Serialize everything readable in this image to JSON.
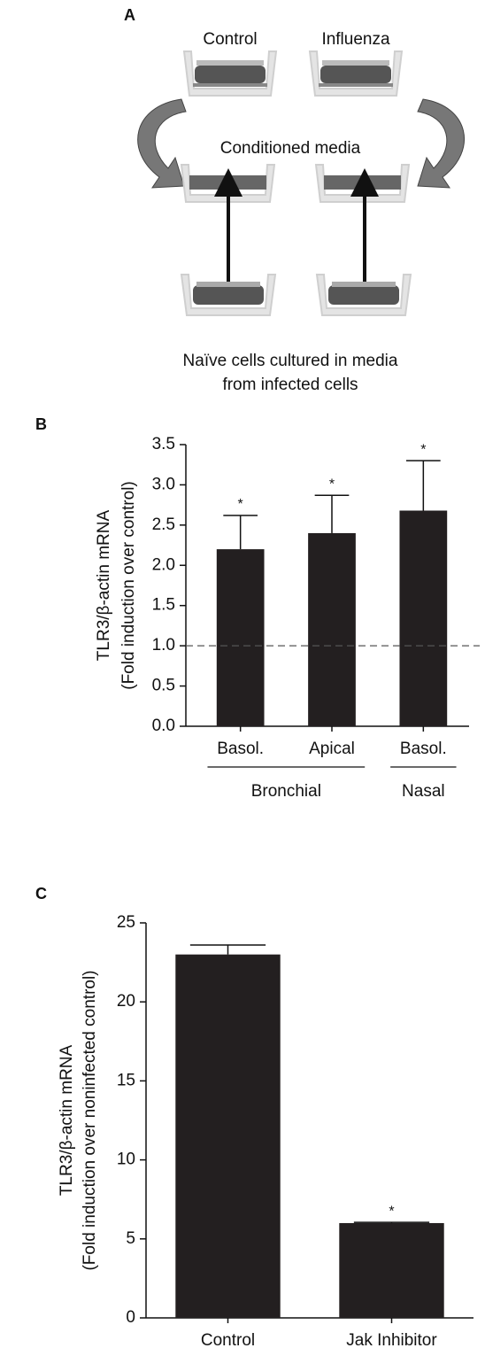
{
  "figure_a": {
    "label": "A",
    "wells": [
      "Control",
      "Influenza"
    ],
    "middle": "Conditioned media",
    "caption": [
      "Naïve cells cultured in media",
      "from infected cells"
    ]
  },
  "chart_data": [
    {
      "type": "bar",
      "label": "B",
      "categories": [
        "Basol.",
        "Apical",
        "Basol."
      ],
      "category_groups": [
        "Bronchial",
        "Bronchial",
        "Nasal"
      ],
      "values": [
        2.2,
        2.4,
        2.68
      ],
      "errors": [
        0.42,
        0.47,
        0.62
      ],
      "value_annotations": [
        "*",
        "*",
        "*"
      ],
      "reference_line": 1,
      "ylabel": [
        "TLR3/β-actin mRNA",
        "(Fold induction over control)"
      ],
      "ylim": [
        0,
        3.5
      ],
      "yticks": [
        {
          "value": 0,
          "label": "0.0"
        },
        0.5,
        {
          "value": 1,
          "label": "1.0"
        },
        1.5,
        {
          "value": 2,
          "label": "2.0"
        },
        2.5,
        {
          "value": 3,
          "label": "3.0"
        },
        3.5
      ],
      "color": "#231f20"
    },
    {
      "type": "bar",
      "label": "C",
      "categories": [
        "Control",
        "Jak Inhibitor"
      ],
      "values": [
        23.0,
        6.0
      ],
      "errors": [
        0.6,
        0.05
      ],
      "value_annotations": [
        null,
        "*"
      ],
      "ylabel": [
        "TLR3/β-actin mRNA",
        "(Fold induction over noninfected control)"
      ],
      "ylim": [
        0,
        25
      ],
      "yticks": [
        0,
        5,
        10,
        15,
        20,
        25
      ],
      "color": "#231f20"
    }
  ]
}
